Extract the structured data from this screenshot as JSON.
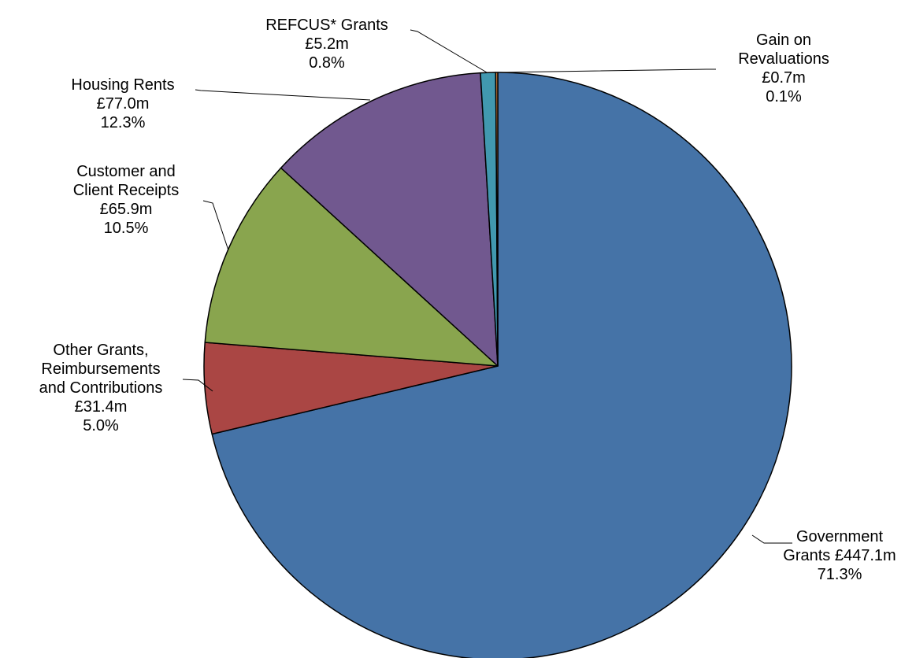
{
  "chart_data": {
    "type": "pie",
    "title": "",
    "start_angle_deg": 0,
    "direction": "clockwise",
    "slices": [
      {
        "name": "Government Grants",
        "value": 447.1,
        "percent": 71.3,
        "color": "#4573A7",
        "label_lines": [
          "Government",
          "Grants £447.1m",
          "71.3%"
        ]
      },
      {
        "name": "Other Grants, Reimbursements and Contributions",
        "value": 31.4,
        "percent": 5.0,
        "color": "#AA4644",
        "label_lines": [
          "Other Grants,",
          "Reimbursements",
          "and Contributions",
          "£31.4m",
          "5.0%"
        ]
      },
      {
        "name": "Customer and Client Receipts",
        "value": 65.9,
        "percent": 10.5,
        "color": "#89A54E",
        "label_lines": [
          "Customer and",
          "Client Receipts",
          "£65.9m",
          "10.5%"
        ]
      },
      {
        "name": "Housing Rents",
        "value": 77.0,
        "percent": 12.3,
        "color": "#71588F",
        "label_lines": [
          "Housing Rents",
          "£77.0m",
          "12.3%"
        ]
      },
      {
        "name": "REFCUS* Grants",
        "value": 5.2,
        "percent": 0.8,
        "color": "#4198AF",
        "label_lines": [
          "REFCUS* Grants",
          "£5.2m",
          "0.8%"
        ]
      },
      {
        "name": "Gain on Revaluations",
        "value": 0.7,
        "percent": 0.1,
        "color": "#DB843D",
        "label_lines": [
          "Gain on",
          "Revaluations",
          "£0.7m",
          "0.1%"
        ]
      }
    ]
  }
}
